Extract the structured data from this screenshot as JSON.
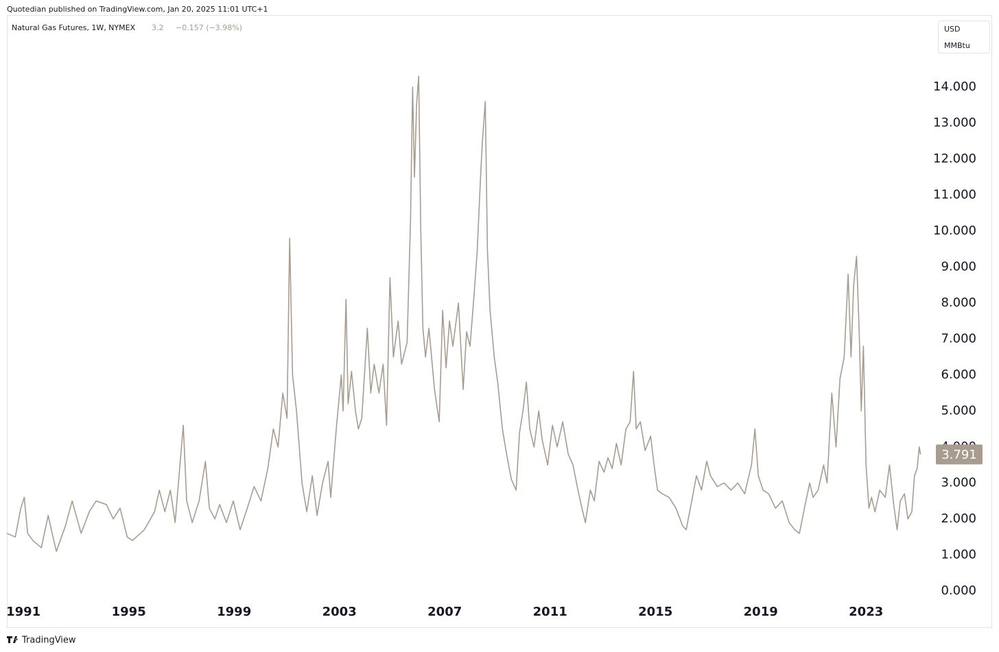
{
  "header": {
    "publisher": "Quotedian published on TradingView.com, Jan 20, 2025 11:01 UTC+1"
  },
  "footer": {
    "brand": "TradingView"
  },
  "chart_data": {
    "type": "line",
    "title": "Natural Gas Futures, 1W, NYMEX",
    "change": "−0.157 (−3.98%)",
    "currency": "USD",
    "unit": "MMBtu",
    "grid": false,
    "xlim": [
      1990.37,
      2025.6
    ],
    "ylim": [
      -1.03,
      16.0
    ],
    "xticks": [
      1991,
      1995,
      1999,
      2003,
      2007,
      2011,
      2015,
      2019,
      2023
    ],
    "yticks": [
      {
        "value": 0,
        "label": "0.000"
      },
      {
        "value": 1,
        "label": "1.000"
      },
      {
        "value": 2,
        "label": "2.000"
      },
      {
        "value": 3,
        "label": "3.000"
      },
      {
        "value": 4,
        "label": "4.000"
      },
      {
        "value": 5,
        "label": "5.000"
      },
      {
        "value": 6,
        "label": "6.000"
      },
      {
        "value": 7,
        "label": "7.000"
      },
      {
        "value": 8,
        "label": "8.000"
      },
      {
        "value": 9,
        "label": "9.000"
      },
      {
        "value": 10,
        "label": "10.000"
      },
      {
        "value": 11,
        "label": "11.000"
      },
      {
        "value": 12,
        "label": "12.000"
      },
      {
        "value": 13,
        "label": "13.000"
      },
      {
        "value": 14,
        "label": "14.000"
      }
    ],
    "x": [
      1990.37,
      1990.69,
      1990.9,
      1991.03,
      1991.16,
      1991.36,
      1991.68,
      1991.94,
      1992.09,
      1992.25,
      1992.59,
      1992.85,
      1993.19,
      1993.5,
      1993.76,
      1994.15,
      1994.41,
      1994.67,
      1994.94,
      1995.14,
      1995.59,
      1995.98,
      1996.16,
      1996.37,
      1996.58,
      1996.76,
      1997.07,
      1997.2,
      1997.41,
      1997.67,
      1997.91,
      1998.06,
      1998.27,
      1998.45,
      1998.71,
      1998.97,
      1999.23,
      1999.5,
      1999.76,
      2000.02,
      2000.28,
      2000.49,
      2000.67,
      2000.85,
      2001.01,
      2001.11,
      2001.22,
      2001.37,
      2001.58,
      2001.76,
      2001.97,
      2002.15,
      2002.36,
      2002.57,
      2002.67,
      2002.88,
      2003.07,
      2003.14,
      2003.25,
      2003.33,
      2003.46,
      2003.61,
      2003.72,
      2003.85,
      2004.06,
      2004.19,
      2004.32,
      2004.5,
      2004.66,
      2004.79,
      2004.92,
      2005.05,
      2005.23,
      2005.36,
      2005.57,
      2005.7,
      2005.78,
      2005.85,
      2005.93,
      2006.01,
      2006.09,
      2006.17,
      2006.27,
      2006.4,
      2006.61,
      2006.79,
      2006.92,
      2007.05,
      2007.18,
      2007.31,
      2007.52,
      2007.7,
      2007.83,
      2007.96,
      2008.09,
      2008.23,
      2008.36,
      2008.43,
      2008.54,
      2008.62,
      2008.72,
      2008.88,
      2009.01,
      2009.19,
      2009.35,
      2009.53,
      2009.71,
      2009.84,
      2009.97,
      2010.1,
      2010.23,
      2010.39,
      2010.57,
      2010.7,
      2010.91,
      2011.09,
      2011.27,
      2011.48,
      2011.69,
      2011.87,
      2012.06,
      2012.21,
      2012.34,
      2012.53,
      2012.68,
      2012.86,
      2013.05,
      2013.2,
      2013.36,
      2013.52,
      2013.7,
      2013.88,
      2014.04,
      2014.17,
      2014.27,
      2014.43,
      2014.61,
      2014.82,
      2014.95,
      2015.08,
      2015.26,
      2015.52,
      2015.78,
      2016.04,
      2016.17,
      2016.38,
      2016.56,
      2016.75,
      2016.95,
      2017.09,
      2017.35,
      2017.61,
      2017.87,
      2018.13,
      2018.39,
      2018.65,
      2018.78,
      2018.91,
      2019.09,
      2019.3,
      2019.56,
      2019.82,
      2020.08,
      2020.29,
      2020.47,
      2020.66,
      2020.86,
      2020.99,
      2021.18,
      2021.39,
      2021.52,
      2021.7,
      2021.86,
      2022.01,
      2022.17,
      2022.32,
      2022.43,
      2022.53,
      2022.64,
      2022.74,
      2022.82,
      2022.9,
      2023.0,
      2023.11,
      2023.21,
      2023.34,
      2023.52,
      2023.73,
      2023.89,
      2024.05,
      2024.18,
      2024.3,
      2024.46,
      2024.59,
      2024.74,
      2024.84,
      2024.94,
      2025.02,
      2025.07
    ],
    "series": [
      {
        "name": "Natural Gas Futures",
        "color": "#a89c8e",
        "values": [
          1.6,
          1.5,
          2.3,
          2.6,
          1.6,
          1.4,
          1.2,
          2.1,
          1.6,
          1.1,
          1.8,
          2.5,
          1.6,
          2.2,
          2.5,
          2.4,
          2.0,
          2.3,
          1.5,
          1.4,
          1.7,
          2.2,
          2.8,
          2.2,
          2.8,
          1.9,
          4.6,
          2.5,
          1.9,
          2.5,
          3.6,
          2.3,
          2.0,
          2.4,
          1.9,
          2.5,
          1.7,
          2.3,
          2.9,
          2.5,
          3.4,
          4.5,
          4.0,
          5.5,
          4.8,
          9.8,
          6.0,
          5.0,
          3.0,
          2.2,
          3.2,
          2.1,
          3.0,
          3.6,
          2.6,
          4.5,
          6.0,
          5.0,
          8.1,
          5.2,
          6.1,
          5.0,
          4.5,
          4.8,
          7.3,
          5.5,
          6.3,
          5.5,
          6.3,
          4.6,
          8.7,
          6.5,
          7.5,
          6.3,
          6.9,
          10.3,
          14.0,
          11.5,
          13.5,
          14.3,
          10.0,
          7.3,
          6.5,
          7.3,
          5.6,
          4.7,
          7.8,
          6.2,
          7.5,
          6.8,
          8.0,
          5.6,
          7.2,
          6.8,
          8.0,
          9.4,
          11.5,
          12.5,
          13.6,
          9.5,
          7.8,
          6.5,
          5.8,
          4.5,
          3.8,
          3.1,
          2.8,
          4.4,
          5.0,
          5.8,
          4.5,
          4.0,
          5.0,
          4.2,
          3.5,
          4.6,
          4.0,
          4.7,
          3.8,
          3.5,
          2.8,
          2.3,
          1.9,
          2.8,
          2.5,
          3.6,
          3.3,
          3.7,
          3.4,
          4.1,
          3.5,
          4.5,
          4.7,
          6.1,
          4.5,
          4.7,
          3.9,
          4.3,
          3.5,
          2.8,
          2.7,
          2.6,
          2.3,
          1.8,
          1.7,
          2.5,
          3.2,
          2.8,
          3.6,
          3.2,
          2.9,
          3.0,
          2.8,
          3.0,
          2.7,
          3.5,
          4.5,
          3.2,
          2.8,
          2.7,
          2.3,
          2.5,
          1.9,
          1.7,
          1.6,
          2.3,
          3.0,
          2.6,
          2.8,
          3.5,
          3.0,
          5.5,
          4.0,
          5.9,
          6.5,
          8.8,
          6.5,
          8.5,
          9.3,
          7.2,
          5.0,
          6.8,
          3.5,
          2.3,
          2.6,
          2.2,
          2.8,
          2.6,
          3.5,
          2.4,
          1.7,
          2.5,
          2.7,
          2.0,
          2.2,
          3.2,
          3.4,
          4.0,
          3.791
        ]
      }
    ]
  }
}
